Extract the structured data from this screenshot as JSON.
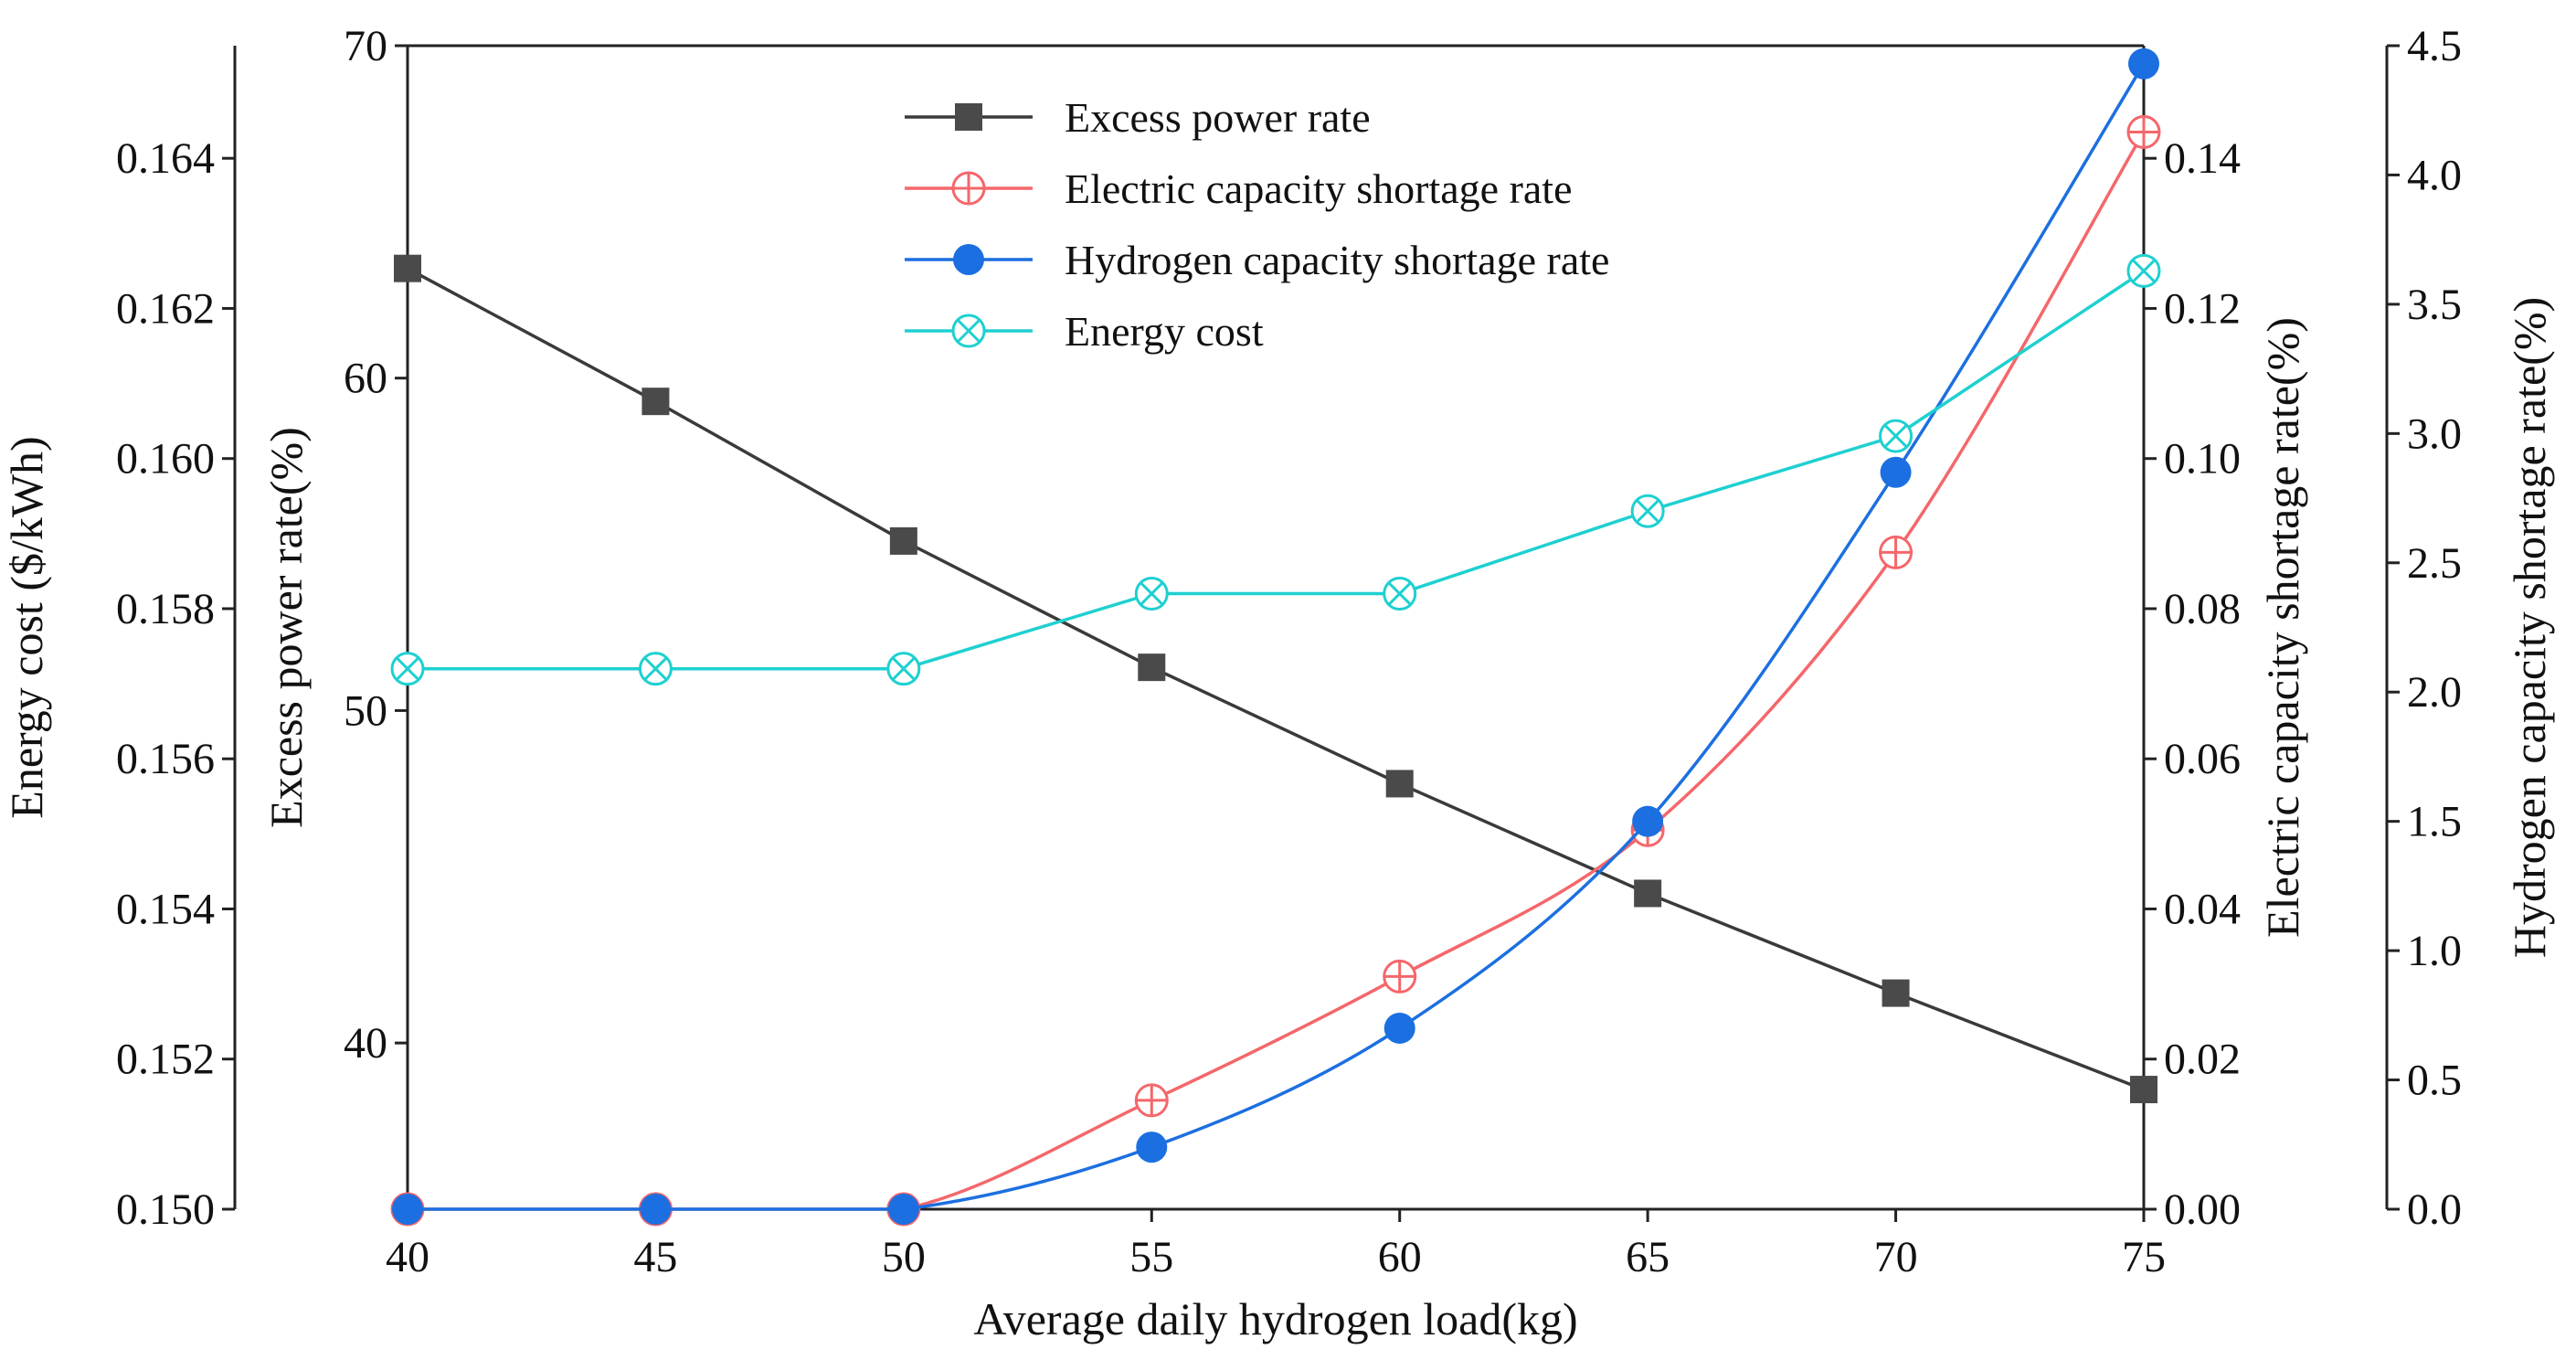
{
  "chart_data": {
    "type": "line",
    "title": "",
    "xlabel": "Average daily hydrogen load(kg)",
    "x": [
      40,
      45,
      50,
      55,
      60,
      65,
      70,
      75
    ],
    "xlim": [
      40,
      75
    ],
    "x_ticks": [
      "40",
      "45",
      "50",
      "55",
      "60",
      "65",
      "70",
      "75"
    ],
    "legend_position": "top-center",
    "axes": {
      "energy_cost": {
        "label": "Energy cost ($/kWh)",
        "ylim": [
          0.15,
          0.1655
        ],
        "ticks": [
          "0.150",
          "0.152",
          "0.154",
          "0.156",
          "0.158",
          "0.160",
          "0.162",
          "0.164"
        ],
        "tick_values": [
          0.15,
          0.152,
          0.154,
          0.156,
          0.158,
          0.16,
          0.162,
          0.164
        ]
      },
      "excess_power": {
        "label": "Excess power rate(%)",
        "ylim": [
          35,
          70
        ],
        "ticks": [
          "40",
          "50",
          "60",
          "70"
        ],
        "tick_values": [
          40,
          50,
          60,
          70
        ]
      },
      "electric_shortage": {
        "label": "Electric capacity shortage rate(%)",
        "ylim": [
          0,
          0.155
        ],
        "ticks": [
          "0.00",
          "0.02",
          "0.04",
          "0.06",
          "0.08",
          "0.10",
          "0.12",
          "0.14"
        ],
        "tick_values": [
          0.0,
          0.02,
          0.04,
          0.06,
          0.08,
          0.1,
          0.12,
          0.14
        ]
      },
      "hydrogen_shortage": {
        "label": "Hydrogen capacity shortage rate(%)",
        "ylim": [
          0,
          4.5
        ],
        "ticks": [
          "0.0",
          "0.5",
          "1.0",
          "1.5",
          "2.0",
          "2.5",
          "3.0",
          "3.5",
          "4.0",
          "4.5"
        ],
        "tick_values": [
          0.0,
          0.5,
          1.0,
          1.5,
          2.0,
          2.5,
          3.0,
          3.5,
          4.0,
          4.5
        ]
      }
    },
    "series": [
      {
        "name": "Excess power rate",
        "axis": "excess_power",
        "color": "#3a3a3a",
        "marker": "square",
        "values": [
          63.3,
          59.3,
          55.1,
          51.3,
          47.8,
          44.5,
          41.5,
          38.6
        ]
      },
      {
        "name": "Electric capacity shortage rate",
        "axis": "electric_shortage",
        "color": "#f4676b",
        "marker": "circle-plus",
        "values": [
          0.0,
          0.0,
          0.0,
          0.0145,
          0.031,
          0.0505,
          0.0875,
          0.1435
        ]
      },
      {
        "name": "Hydrogen capacity shortage rate",
        "axis": "hydrogen_shortage",
        "color": "#1c6fe0",
        "marker": "filled-circle",
        "values": [
          0.0,
          0.0,
          0.0,
          0.24,
          0.7,
          1.5,
          2.85,
          4.43
        ]
      },
      {
        "name": "Energy cost",
        "axis": "energy_cost",
        "color": "#1fd0d0",
        "marker": "circle-x",
        "values": [
          0.1572,
          0.1572,
          0.1572,
          0.1582,
          0.1582,
          0.1593,
          0.1603,
          0.1625
        ]
      }
    ]
  }
}
